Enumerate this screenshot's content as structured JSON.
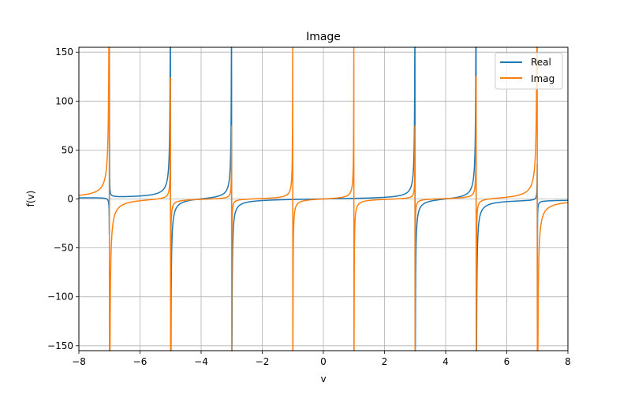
{
  "chart_data": {
    "type": "line",
    "title": "Image",
    "xlabel": "v",
    "ylabel": "f(v)",
    "xlim": [
      -8,
      8
    ],
    "ylim": [
      -155,
      155
    ],
    "xticks": [
      -8,
      -6,
      -4,
      -2,
      0,
      2,
      4,
      6,
      8
    ],
    "xtick_labels": [
      "−8",
      "−6",
      "−4",
      "−2",
      "0",
      "2",
      "4",
      "6",
      "8"
    ],
    "yticks": [
      150,
      100,
      50,
      0,
      -50,
      -100,
      -150
    ],
    "ytick_labels": [
      "150",
      "100",
      "50",
      "0",
      "−50",
      "−100",
      "−150"
    ],
    "grid": true,
    "legend_position": "top-right",
    "series": [
      {
        "name": "Real",
        "color": "#1f77b4",
        "poles": [
          {
            "x": -5,
            "amp": 2.0,
            "sign": -1
          },
          {
            "x": -3,
            "amp": 1.6,
            "sign": -1
          },
          {
            "x": 3,
            "amp": 1.6,
            "sign": -1
          },
          {
            "x": 5,
            "amp": 2.0,
            "sign": -1
          },
          {
            "x": -7,
            "amp": 0.15,
            "sign": 1
          },
          {
            "x": 7,
            "amp": 0.15,
            "sign": -1
          }
        ]
      },
      {
        "name": "Imag",
        "color": "#ff7f0e",
        "poles": [
          {
            "x": -7,
            "amp": 3.0,
            "sign": -1
          },
          {
            "x": 7,
            "amp": 3.0,
            "sign": -1
          },
          {
            "x": -1,
            "amp": 0.8,
            "sign": -1
          },
          {
            "x": 1,
            "amp": 0.8,
            "sign": -1
          },
          {
            "x": -5,
            "amp": 0.5,
            "sign": -1
          },
          {
            "x": 5,
            "amp": 0.5,
            "sign": -1
          },
          {
            "x": -3,
            "amp": 0.3,
            "sign": -1
          },
          {
            "x": 3,
            "amp": 0.3,
            "sign": -1
          }
        ]
      }
    ]
  }
}
